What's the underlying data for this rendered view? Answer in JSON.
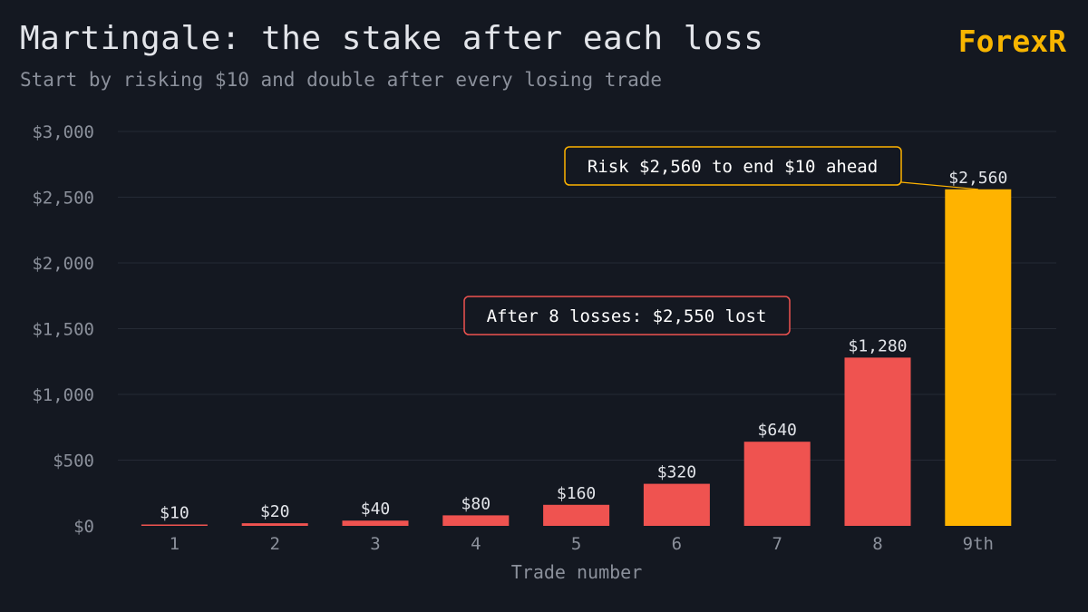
{
  "header": {
    "title": "Martingale: the stake after each loss",
    "subtitle": "Start by risking $10 and double after every losing trade",
    "brand": "ForexR"
  },
  "colors": {
    "background": "#141821",
    "loss_bar": "#ef5350",
    "final_bar": "#ffb300",
    "grid": "#252a35",
    "loss_annotation_border": "#ef5350",
    "final_annotation_border": "#ffb300"
  },
  "chart_data": {
    "type": "bar",
    "categories": [
      "1",
      "2",
      "3",
      "4",
      "5",
      "6",
      "7",
      "8",
      "9th"
    ],
    "values": [
      10,
      20,
      40,
      80,
      160,
      320,
      640,
      1280,
      2560
    ],
    "value_labels": [
      "$10",
      "$20",
      "$40",
      "$80",
      "$160",
      "$320",
      "$640",
      "$1,280",
      "$2,560"
    ],
    "highlight_index": 8,
    "xlabel": "Trade number",
    "ylabel": "",
    "ylim": [
      0,
      3000
    ],
    "yticks": [
      0,
      500,
      1000,
      1500,
      2000,
      2500,
      3000
    ],
    "ytick_labels": [
      "$0",
      "$500",
      "$1,000",
      "$1,500",
      "$2,000",
      "$2,500",
      "$3,000"
    ],
    "grid": true,
    "annotations": [
      {
        "text": "After 8 losses: $2,550 lost",
        "style": "loss"
      },
      {
        "text": "Risk $2,560 to end $10 ahead",
        "style": "final"
      }
    ]
  }
}
